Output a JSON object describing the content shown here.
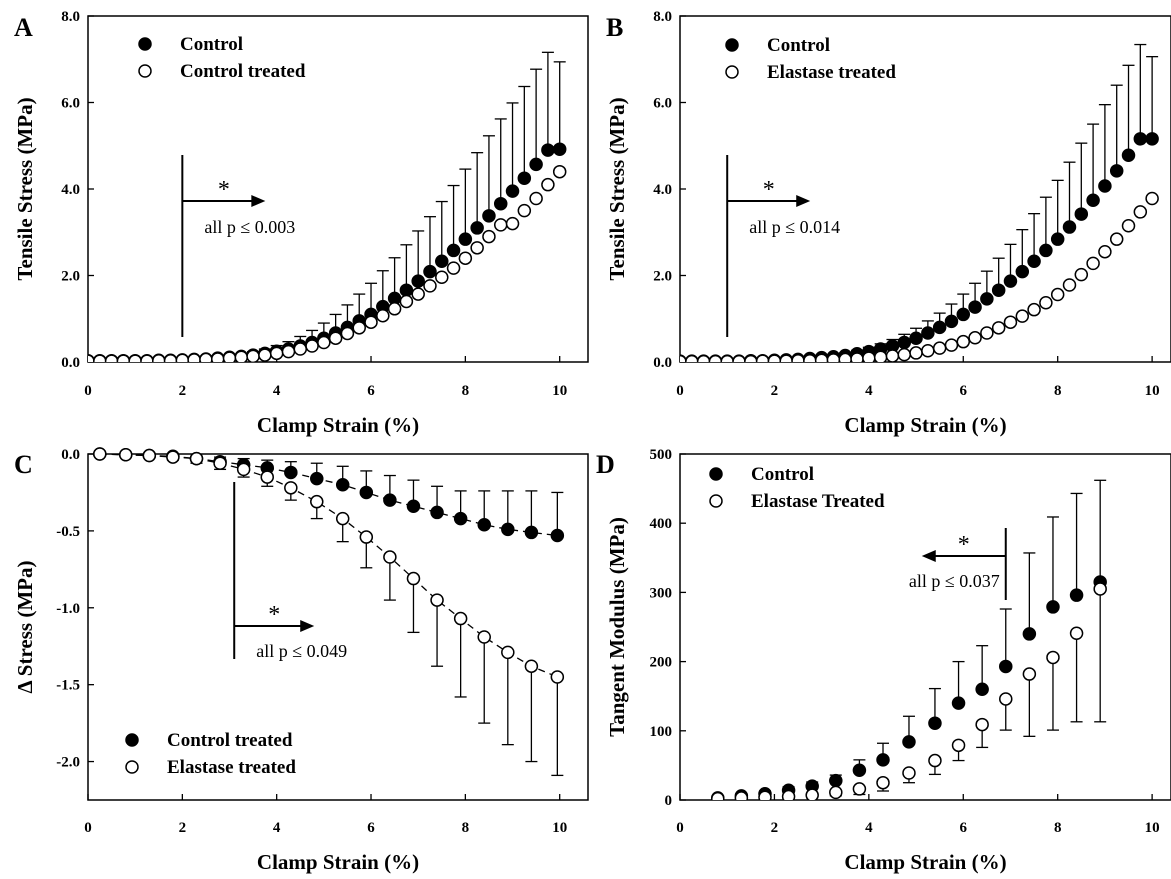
{
  "chart_data": [
    {
      "type": "scatter",
      "panel_label": "A",
      "xlabel": "Clamp Strain (%)",
      "ylabel": "Tensile Stress (MPa)",
      "xlim": [
        0,
        10.6
      ],
      "ylim": [
        0,
        8
      ],
      "xticks": [
        "0",
        "2",
        "4",
        "6",
        "8",
        "10"
      ],
      "yticks": [
        "0.0",
        "2.0",
        "4.0",
        "6.0",
        "8.0"
      ],
      "legend_position": "top-left",
      "errorbar_direction": "up",
      "annotation": {
        "star": "*",
        "text": "all p ≤ 0.003",
        "arrow_direction": "right",
        "x": 2.0
      },
      "series": [
        {
          "name": "Control",
          "marker": "filled",
          "x": [
            0,
            0.25,
            0.5,
            0.75,
            1,
            1.25,
            1.5,
            1.75,
            2,
            2.25,
            2.5,
            2.75,
            3,
            3.25,
            3.5,
            3.75,
            4,
            4.25,
            4.5,
            4.75,
            5,
            5.25,
            5.5,
            5.75,
            6,
            6.25,
            6.5,
            6.75,
            7,
            7.25,
            7.5,
            7.75,
            8,
            8.25,
            8.5,
            8.75,
            9,
            9.25,
            9.5,
            9.75,
            10
          ],
          "y": [
            0.03,
            0.03,
            0.03,
            0.03,
            0.03,
            0.03,
            0.04,
            0.04,
            0.05,
            0.06,
            0.07,
            0.09,
            0.11,
            0.13,
            0.16,
            0.2,
            0.25,
            0.3,
            0.37,
            0.45,
            0.55,
            0.67,
            0.8,
            0.95,
            1.1,
            1.28,
            1.47,
            1.66,
            1.87,
            2.09,
            2.33,
            2.58,
            2.84,
            3.1,
            3.38,
            3.66,
            3.95,
            4.25,
            4.57,
            4.9,
            4.92
          ],
          "error_up": [
            0.01,
            0.01,
            0.01,
            0.01,
            0.01,
            0.01,
            0.01,
            0.01,
            0.02,
            0.02,
            0.03,
            0.04,
            0.05,
            0.06,
            0.08,
            0.1,
            0.13,
            0.17,
            0.22,
            0.28,
            0.35,
            0.43,
            0.52,
            0.62,
            0.72,
            0.83,
            0.94,
            1.05,
            1.16,
            1.27,
            1.38,
            1.5,
            1.62,
            1.74,
            1.85,
            1.96,
            2.04,
            2.12,
            2.2,
            2.26,
            2.02
          ]
        },
        {
          "name": "Control treated",
          "marker": "open",
          "x": [
            0,
            0.25,
            0.5,
            0.75,
            1,
            1.25,
            1.5,
            1.75,
            2,
            2.25,
            2.5,
            2.75,
            3,
            3.25,
            3.5,
            3.75,
            4,
            4.25,
            4.5,
            4.75,
            5,
            5.25,
            5.5,
            5.75,
            6,
            6.25,
            6.5,
            6.75,
            7,
            7.25,
            7.5,
            7.75,
            8,
            8.25,
            8.5,
            8.75,
            9,
            9.25,
            9.5,
            9.75,
            10
          ],
          "y": [
            0.02,
            0.02,
            0.02,
            0.02,
            0.02,
            0.02,
            0.03,
            0.03,
            0.04,
            0.05,
            0.06,
            0.07,
            0.09,
            0.11,
            0.13,
            0.16,
            0.2,
            0.24,
            0.3,
            0.37,
            0.45,
            0.55,
            0.66,
            0.79,
            0.92,
            1.07,
            1.23,
            1.4,
            1.57,
            1.76,
            1.96,
            2.17,
            2.4,
            2.64,
            2.9,
            3.17,
            3.2,
            3.5,
            3.78,
            4.1,
            4.4
          ]
        }
      ]
    },
    {
      "type": "scatter",
      "panel_label": "B",
      "xlabel": "Clamp Strain (%)",
      "ylabel": "Tensile Stress (MPa)",
      "xlim": [
        0,
        10.4
      ],
      "ylim": [
        0,
        8
      ],
      "xticks": [
        "0",
        "2",
        "4",
        "6",
        "8",
        "10"
      ],
      "yticks": [
        "0.0",
        "2.0",
        "4.0",
        "6.0",
        "8.0"
      ],
      "legend_position": "top-left",
      "errorbar_direction": "up",
      "annotation": {
        "star": "*",
        "text": "all p ≤ 0.014",
        "arrow_direction": "right",
        "x": 1.0
      },
      "series": [
        {
          "name": "Control",
          "marker": "filled",
          "x": [
            0,
            0.25,
            0.5,
            0.75,
            1,
            1.25,
            1.5,
            1.75,
            2,
            2.25,
            2.5,
            2.75,
            3,
            3.25,
            3.5,
            3.75,
            4,
            4.25,
            4.5,
            4.75,
            5,
            5.25,
            5.5,
            5.75,
            6,
            6.25,
            6.5,
            6.75,
            7,
            7.25,
            7.5,
            7.75,
            8,
            8.25,
            8.5,
            8.75,
            9,
            9.25,
            9.5,
            9.75,
            10
          ],
          "y": [
            0.02,
            0.02,
            0.02,
            0.02,
            0.02,
            0.02,
            0.03,
            0.03,
            0.04,
            0.05,
            0.06,
            0.08,
            0.1,
            0.12,
            0.15,
            0.19,
            0.24,
            0.3,
            0.37,
            0.45,
            0.55,
            0.67,
            0.8,
            0.94,
            1.1,
            1.27,
            1.46,
            1.66,
            1.87,
            2.09,
            2.33,
            2.58,
            2.84,
            3.12,
            3.42,
            3.74,
            4.07,
            4.42,
            4.78,
            5.16,
            5.16
          ],
          "error_up": [
            0.01,
            0.01,
            0.01,
            0.01,
            0.01,
            0.01,
            0.01,
            0.01,
            0.02,
            0.02,
            0.03,
            0.03,
            0.04,
            0.05,
            0.06,
            0.08,
            0.1,
            0.12,
            0.15,
            0.19,
            0.23,
            0.28,
            0.33,
            0.4,
            0.47,
            0.55,
            0.64,
            0.74,
            0.85,
            0.97,
            1.1,
            1.23,
            1.36,
            1.5,
            1.64,
            1.76,
            1.88,
            1.98,
            2.08,
            2.18,
            1.9
          ]
        },
        {
          "name": "Elastase treated",
          "marker": "open",
          "x": [
            0,
            0.25,
            0.5,
            0.75,
            1,
            1.25,
            1.5,
            1.75,
            2,
            2.25,
            2.5,
            2.75,
            3,
            3.25,
            3.5,
            3.75,
            4,
            4.25,
            4.5,
            4.75,
            5,
            5.25,
            5.5,
            5.75,
            6,
            6.25,
            6.5,
            6.75,
            7,
            7.25,
            7.5,
            7.75,
            8,
            8.25,
            8.5,
            8.75,
            9,
            9.25,
            9.5,
            9.75,
            10
          ],
          "y": [
            0.01,
            0.01,
            0.01,
            0.01,
            0.01,
            0.01,
            0.01,
            0.02,
            0.02,
            0.02,
            0.03,
            0.03,
            0.04,
            0.05,
            0.06,
            0.07,
            0.09,
            0.11,
            0.14,
            0.17,
            0.21,
            0.26,
            0.32,
            0.39,
            0.47,
            0.56,
            0.67,
            0.79,
            0.92,
            1.06,
            1.21,
            1.37,
            1.56,
            1.78,
            2.02,
            2.28,
            2.55,
            2.84,
            3.15,
            3.47,
            3.78
          ]
        }
      ]
    },
    {
      "type": "line",
      "panel_label": "C",
      "xlabel": "Clamp Strain (%)",
      "ylabel": "Δ Stress (MPa)",
      "xlim": [
        0,
        10.6
      ],
      "ylim": [
        -2.25,
        0
      ],
      "xticks": [
        "0",
        "2",
        "4",
        "6",
        "8",
        "10"
      ],
      "yticks": [
        "0.0",
        "-0.5",
        "-1.0",
        "-1.5",
        "-2.0"
      ],
      "legend_position": "bottom-left",
      "errorbar_direction": "both",
      "line_style": "dashed",
      "annotation": {
        "star": "*",
        "text": "all p ≤ 0.049",
        "arrow_direction": "right",
        "x": 3.1
      },
      "series": [
        {
          "name": "Control treated",
          "marker": "filled",
          "x": [
            0.25,
            0.8,
            1.3,
            1.8,
            2.3,
            2.8,
            3.3,
            3.8,
            4.3,
            4.85,
            5.4,
            5.9,
            6.4,
            6.9,
            7.4,
            7.9,
            8.4,
            8.9,
            9.4,
            9.95
          ],
          "y": [
            0.0,
            -0.005,
            -0.01,
            -0.015,
            -0.03,
            -0.05,
            -0.07,
            -0.09,
            -0.12,
            -0.16,
            -0.2,
            -0.25,
            -0.3,
            -0.34,
            -0.38,
            -0.42,
            -0.46,
            -0.49,
            -0.51,
            -0.53
          ],
          "error": [
            0.005,
            0.005,
            0.01,
            0.01,
            0.02,
            0.03,
            0.04,
            0.05,
            0.07,
            0.1,
            0.12,
            0.14,
            0.16,
            0.17,
            0.17,
            0.18,
            0.22,
            0.25,
            0.27,
            0.28
          ]
        },
        {
          "name": "Elastase treated",
          "marker": "open",
          "x": [
            0.25,
            0.8,
            1.3,
            1.8,
            2.3,
            2.8,
            3.3,
            3.8,
            4.3,
            4.85,
            5.4,
            5.9,
            6.4,
            6.9,
            7.4,
            7.9,
            8.4,
            8.9,
            9.4,
            9.95
          ],
          "y": [
            0.0,
            -0.005,
            -0.01,
            -0.02,
            -0.03,
            -0.06,
            -0.1,
            -0.15,
            -0.22,
            -0.31,
            -0.42,
            -0.54,
            -0.67,
            -0.81,
            -0.95,
            -1.07,
            -1.19,
            -1.29,
            -1.38,
            -1.45
          ],
          "error": [
            0.005,
            0.005,
            0.01,
            0.02,
            0.03,
            0.04,
            0.05,
            0.06,
            0.08,
            0.11,
            0.15,
            0.2,
            0.28,
            0.35,
            0.43,
            0.51,
            0.56,
            0.6,
            0.62,
            0.64
          ]
        }
      ]
    },
    {
      "type": "scatter",
      "panel_label": "D",
      "xlabel": "Clamp Strain (%)",
      "ylabel": "Tangent Modulus (MPa)",
      "xlim": [
        0,
        10.4
      ],
      "ylim": [
        0,
        500
      ],
      "xticks": [
        "0",
        "2",
        "4",
        "6",
        "8",
        "10"
      ],
      "yticks": [
        "0",
        "100",
        "200",
        "300",
        "400",
        "500"
      ],
      "legend_position": "top-left",
      "errorbar_direction": "up",
      "annotation": {
        "star": "*",
        "text": "all p ≤ 0.037",
        "arrow_direction": "left",
        "x": 6.9
      },
      "series": [
        {
          "name": "Control",
          "marker": "filled",
          "x": [
            0.8,
            1.3,
            1.8,
            2.3,
            2.8,
            3.3,
            3.8,
            4.3,
            4.85,
            5.4,
            5.9,
            6.4,
            6.9,
            7.4,
            7.9,
            8.4,
            8.9
          ],
          "y": [
            3,
            6,
            9,
            14,
            20,
            28,
            43,
            58,
            84,
            111,
            140,
            160,
            193,
            240,
            279,
            296,
            315
          ],
          "error_up": [
            2,
            3,
            4,
            5,
            6,
            8,
            15,
            24,
            37,
            50,
            60,
            63,
            83,
            117,
            130,
            147,
            147
          ]
        },
        {
          "name": "Elastase Treated",
          "marker": "open",
          "x": [
            0.8,
            1.3,
            1.8,
            2.3,
            2.8,
            3.3,
            3.8,
            4.3,
            4.85,
            5.4,
            5.9,
            6.4,
            6.9,
            7.4,
            7.9,
            8.4,
            8.9
          ],
          "y": [
            2,
            3,
            4,
            5,
            7,
            11,
            16,
            25,
            39,
            57,
            79,
            109,
            146,
            182,
            206,
            241,
            305
          ],
          "error_down": [
            1,
            2,
            2,
            3,
            4,
            5,
            8,
            12,
            14,
            20,
            22,
            33,
            45,
            90,
            105,
            128,
            192
          ]
        }
      ]
    }
  ]
}
